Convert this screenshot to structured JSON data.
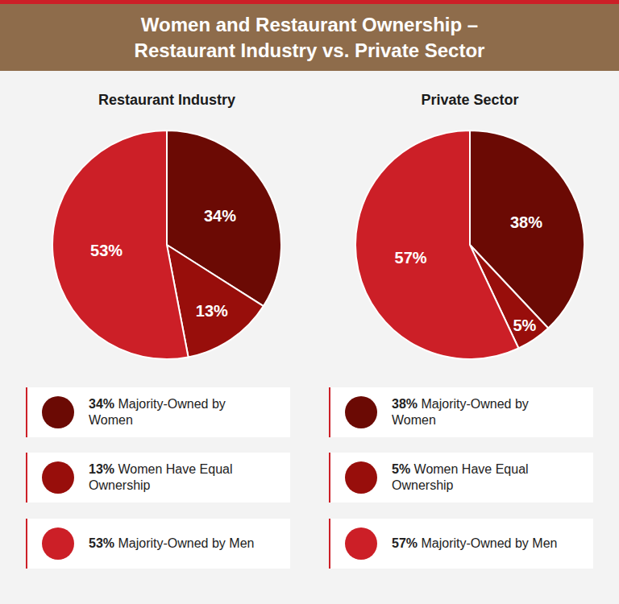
{
  "title": "Women and Restaurant Ownership – Restaurant Industry vs. Private Sector",
  "chart_data": [
    {
      "type": "pie",
      "title": "Restaurant Industry",
      "categories": [
        "Majority-Owned by Women",
        "Women Have Equal Ownership",
        "Majority-Owned by Men"
      ],
      "values": [
        34,
        13,
        53
      ],
      "value_labels": [
        "34%",
        "13%",
        "53%"
      ],
      "colors": [
        "#6b0a04",
        "#980e0b",
        "#cc1f27"
      ],
      "data_labels": true
    },
    {
      "type": "pie",
      "title": "Private Sector",
      "categories": [
        "Majority-Owned by Women",
        "Women Have Equal Ownership",
        "Majority-Owned by Men"
      ],
      "values": [
        38,
        5,
        57
      ],
      "value_labels": [
        "38%",
        "5%",
        "57%"
      ],
      "colors": [
        "#6b0a04",
        "#980e0b",
        "#cc1f27"
      ],
      "data_labels": true
    }
  ]
}
